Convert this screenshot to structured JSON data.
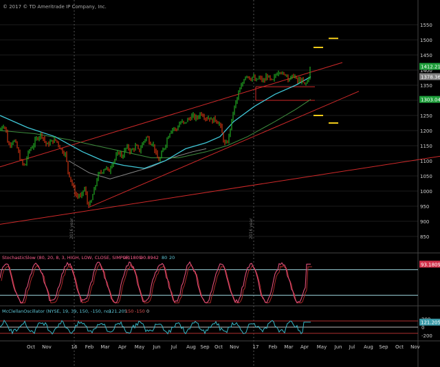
{
  "copyright": "© 2017 © TD Ameritrade IP Company, Inc.",
  "colors": {
    "background": "#000000",
    "price_up": "#22aa22",
    "price_down": "#cc3311",
    "channel": "#d22a2a",
    "ma_fast": "#40c8d8",
    "ma_slow": "#3f8f3f",
    "ma_grey": "#8a8a8a",
    "stoch_line": "#e0507a",
    "stoch_bound": "#a0d8e0",
    "mcc_line": "#38b8c8",
    "target_mark": "#f2cc1a",
    "label_bg_green": "#1e9e3a",
    "label_bg_grey": "#808080"
  },
  "chart_data": [
    {
      "type": "line",
      "panel": "price",
      "ylim": [
        800,
        1600
      ],
      "yticks": [
        850,
        900,
        950,
        1000,
        1050,
        1100,
        1150,
        1200,
        1250,
        1300,
        1350,
        1400,
        1450,
        1500,
        1550
      ],
      "xlabels": [
        "Oct",
        "Nov",
        "16",
        "Feb",
        "Mar",
        "Apr",
        "May",
        "Jun",
        "Jul",
        "Aug",
        "Sep",
        "Oct",
        "Nov",
        "17",
        "Feb",
        "Mar",
        "Apr",
        "May",
        "Jun",
        "Jul",
        "Aug",
        "Sep",
        "Oct",
        "Nov"
      ],
      "year_markers": [
        "2016 year",
        "2016 year"
      ],
      "price_labels": [
        {
          "text": "1412.21",
          "value": 1412.21,
          "style": "green"
        },
        {
          "text": "1378.36",
          "value": 1378.36,
          "style": "grey"
        },
        {
          "text": "1303.04",
          "value": 1303.04,
          "style": "green"
        }
      ],
      "close_path": [
        [
          0,
          1200
        ],
        [
          4,
          1220
        ],
        [
          8,
          1210
        ],
        [
          12,
          1150
        ],
        [
          16,
          1160
        ],
        [
          20,
          1170
        ],
        [
          24,
          1150
        ],
        [
          30,
          1100
        ],
        [
          36,
          1080
        ],
        [
          40,
          1120
        ],
        [
          44,
          1140
        ],
        [
          48,
          1150
        ],
        [
          52,
          1170
        ],
        [
          56,
          1180
        ],
        [
          60,
          1190
        ],
        [
          64,
          1170
        ],
        [
          68,
          1150
        ],
        [
          72,
          1160
        ],
        [
          76,
          1165
        ],
        [
          80,
          1170
        ],
        [
          84,
          1160
        ],
        [
          88,
          1140
        ],
        [
          92,
          1130
        ],
        [
          96,
          1120
        ],
        [
          98,
          1070
        ],
        [
          100,
          1060
        ],
        [
          104,
          1030
        ],
        [
          108,
          1000
        ],
        [
          112,
          980
        ],
        [
          116,
          990
        ],
        [
          118,
          970
        ],
        [
          120,
          1000
        ],
        [
          124,
          1010
        ],
        [
          126,
          965
        ],
        [
          128,
          960
        ],
        [
          132,
          955
        ],
        [
          134,
          980
        ],
        [
          138,
          1010
        ],
        [
          142,
          1050
        ],
        [
          146,
          1060
        ],
        [
          150,
          1070
        ],
        [
          154,
          1080
        ],
        [
          158,
          1060
        ],
        [
          162,
          1090
        ],
        [
          166,
          1100
        ],
        [
          170,
          1120
        ],
        [
          174,
          1130
        ],
        [
          178,
          1110
        ],
        [
          182,
          1140
        ],
        [
          186,
          1145
        ],
        [
          190,
          1130
        ],
        [
          194,
          1140
        ],
        [
          198,
          1150
        ],
        [
          202,
          1130
        ],
        [
          206,
          1150
        ],
        [
          210,
          1170
        ],
        [
          214,
          1180
        ],
        [
          218,
          1160
        ],
        [
          222,
          1160
        ],
        [
          226,
          1130
        ],
        [
          228,
          1110
        ],
        [
          232,
          1100
        ],
        [
          236,
          1130
        ],
        [
          240,
          1150
        ],
        [
          244,
          1180
        ],
        [
          248,
          1200
        ],
        [
          252,
          1210
        ],
        [
          256,
          1200
        ],
        [
          260,
          1220
        ],
        [
          264,
          1230
        ],
        [
          268,
          1220
        ],
        [
          272,
          1235
        ],
        [
          276,
          1240
        ],
        [
          280,
          1250
        ],
        [
          284,
          1240
        ],
        [
          288,
          1245
        ],
        [
          292,
          1260
        ],
        [
          296,
          1250
        ],
        [
          300,
          1240
        ],
        [
          304,
          1245
        ],
        [
          308,
          1230
        ],
        [
          312,
          1240
        ],
        [
          316,
          1230
        ],
        [
          320,
          1220
        ],
        [
          324,
          1180
        ],
        [
          326,
          1160
        ],
        [
          328,
          1150
        ],
        [
          332,
          1170
        ],
        [
          336,
          1220
        ],
        [
          340,
          1270
        ],
        [
          344,
          1300
        ],
        [
          348,
          1330
        ],
        [
          352,
          1350
        ],
        [
          356,
          1380
        ],
        [
          360,
          1385
        ],
        [
          364,
          1370
        ],
        [
          368,
          1380
        ],
        [
          372,
          1360
        ],
        [
          376,
          1375
        ],
        [
          380,
          1370
        ],
        [
          384,
          1360
        ],
        [
          388,
          1385
        ],
        [
          392,
          1370
        ],
        [
          396,
          1360
        ],
        [
          400,
          1380
        ],
        [
          404,
          1395
        ],
        [
          408,
          1400
        ],
        [
          412,
          1380
        ],
        [
          416,
          1390
        ],
        [
          420,
          1370
        ],
        [
          424,
          1375
        ],
        [
          428,
          1385
        ],
        [
          432,
          1360
        ],
        [
          436,
          1370
        ],
        [
          440,
          1360
        ],
        [
          444,
          1350
        ],
        [
          448,
          1370
        ],
        [
          452,
          1412
        ]
      ],
      "ma_fast_path": [
        [
          0,
          1250
        ],
        [
          40,
          1210
        ],
        [
          80,
          1180
        ],
        [
          120,
          1130
        ],
        [
          150,
          1100
        ],
        [
          180,
          1085
        ],
        [
          210,
          1075
        ],
        [
          240,
          1100
        ],
        [
          270,
          1140
        ],
        [
          300,
          1160
        ],
        [
          320,
          1180
        ],
        [
          340,
          1230
        ],
        [
          370,
          1280
        ],
        [
          400,
          1320
        ],
        [
          430,
          1350
        ],
        [
          452,
          1378
        ]
      ],
      "ma_slow_path": [
        [
          0,
          1200
        ],
        [
          50,
          1190
        ],
        [
          100,
          1170
        ],
        [
          140,
          1150
        ],
        [
          180,
          1130
        ],
        [
          220,
          1110
        ],
        [
          260,
          1110
        ],
        [
          300,
          1130
        ],
        [
          330,
          1150
        ],
        [
          360,
          1180
        ],
        [
          400,
          1230
        ],
        [
          430,
          1270
        ],
        [
          452,
          1303
        ]
      ],
      "ma_grey_path": [
        [
          100,
          1100
        ],
        [
          130,
          1060
        ],
        [
          160,
          1040
        ],
        [
          190,
          1060
        ],
        [
          220,
          1080
        ],
        [
          250,
          1110
        ],
        [
          280,
          1130
        ],
        [
          300,
          1140
        ]
      ],
      "channel_upper": [
        [
          0,
          1080
        ],
        [
          498,
          1425
        ]
      ],
      "channel_support": [
        [
          128,
          945
        ],
        [
          522,
          1330
        ]
      ],
      "channel_lower": [
        [
          0,
          890
        ],
        [
          640,
          1115
        ]
      ],
      "horizontal_levels": [
        {
          "x": [
            372,
            458
          ],
          "y": 1300
        },
        {
          "x": [
            372,
            458
          ],
          "y": 1345
        }
      ],
      "targets": [
        {
          "x": [
            456,
            470
          ],
          "y": 1475
        },
        {
          "x": [
            478,
            492
          ],
          "y": 1505
        },
        {
          "x": [
            456,
            470
          ],
          "y": 1250
        },
        {
          "x": [
            478,
            492
          ],
          "y": 1225
        }
      ]
    },
    {
      "type": "line",
      "panel": "stochastic",
      "title": "StochasticSlow (80, 20, 8, 3, HIGH, LOW, CLOSE, SIMPLE)",
      "legend_values": [
        {
          "text": "93.1809",
          "color": "#e0507a"
        },
        {
          "text": "90.8942",
          "color": "#e0507a"
        },
        {
          "text": "80",
          "color": "#60c8d8"
        },
        {
          "text": "20",
          "color": "#60c8d8"
        }
      ],
      "ylim": [
        0,
        100
      ],
      "overbought": 80,
      "oversold": 20,
      "last_label": "93.1809"
    },
    {
      "type": "line",
      "panel": "mcclellan",
      "title": "McClellanOscillator (NYSE, 19, 39, 150, -150, no)",
      "legend_values": [
        {
          "text": "121.205",
          "color": "#60c8d8"
        },
        {
          "text": "150",
          "color": "#e05050"
        },
        {
          "text": "-150",
          "color": "#e05050"
        },
        {
          "text": "0",
          "color": "#cccccc"
        }
      ],
      "ylim": [
        -300,
        300
      ],
      "yticks": [
        -200,
        0,
        200
      ],
      "bands": [
        150,
        -150
      ],
      "last_label": "121.205"
    }
  ]
}
